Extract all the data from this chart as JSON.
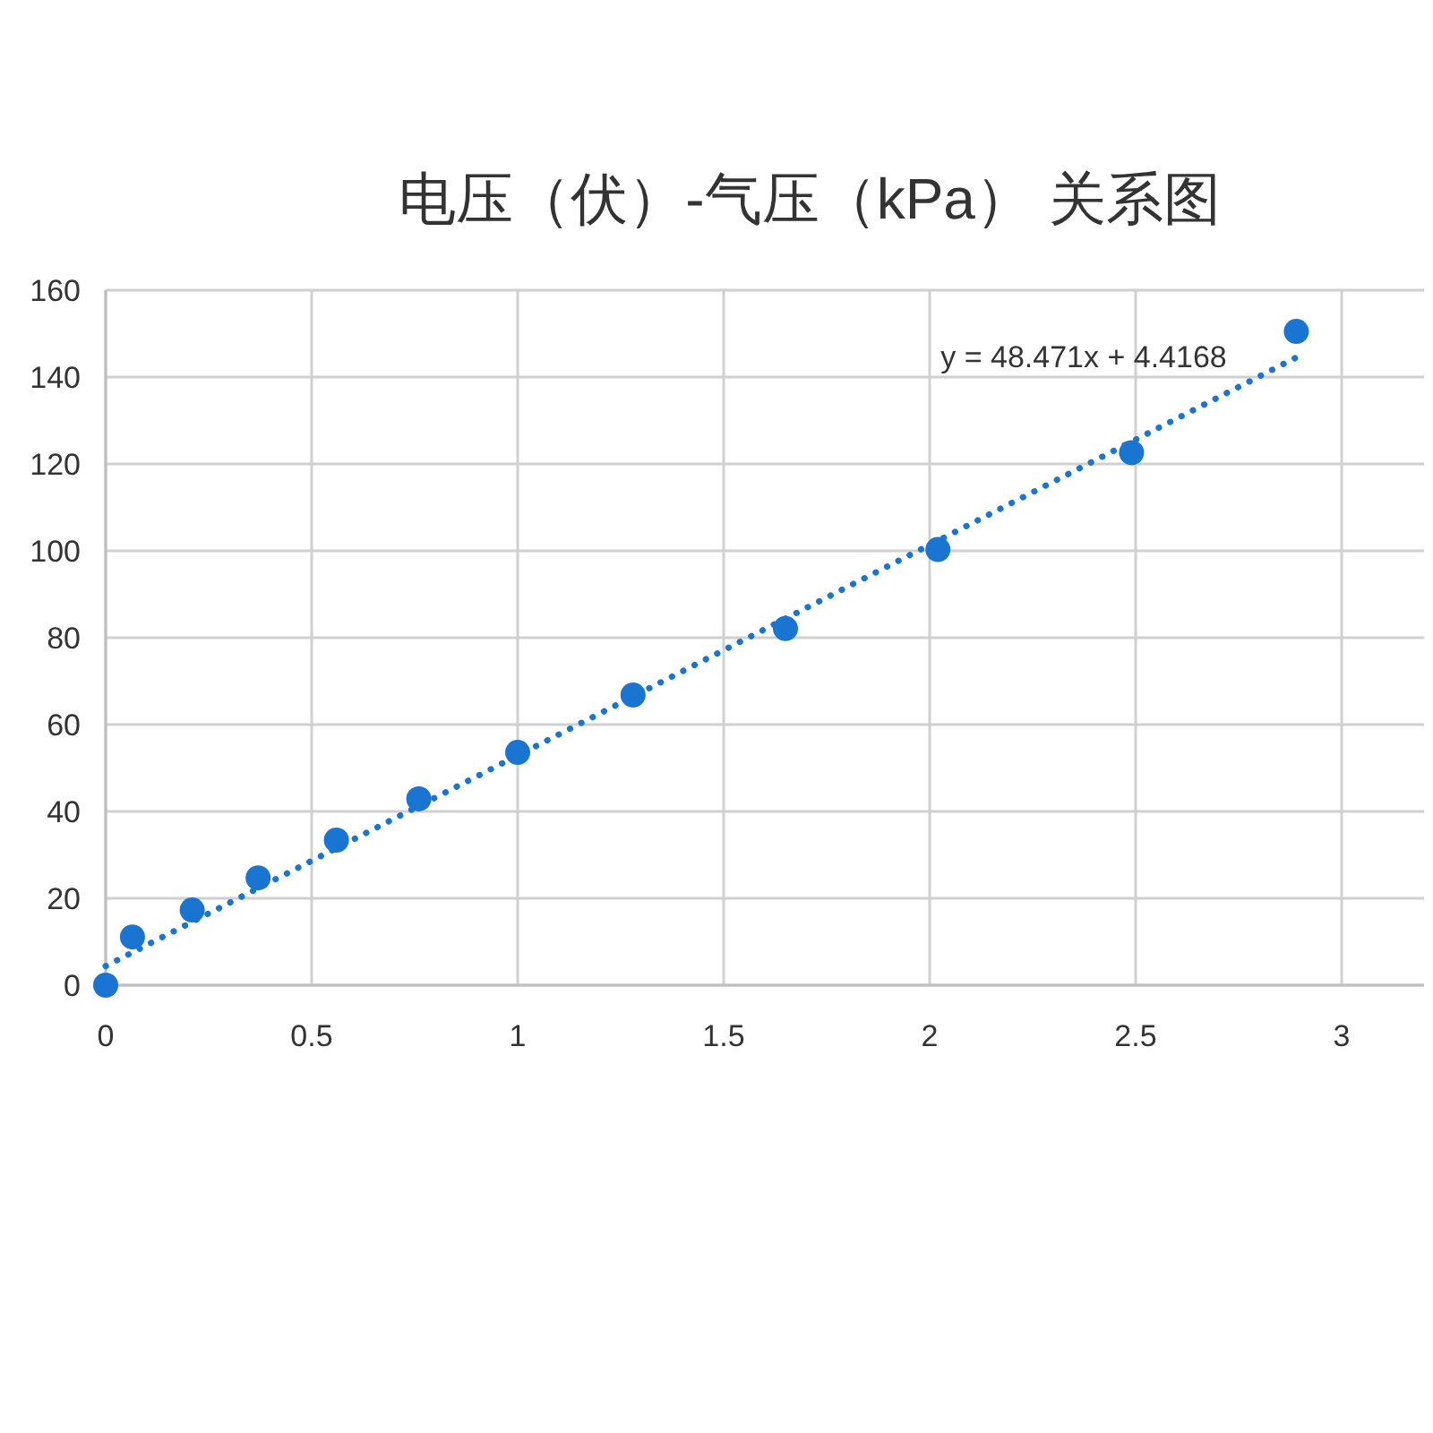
{
  "chart_data": {
    "type": "scatter",
    "title": "电压（伏）-气压（kPa） 关系图",
    "annotations": [
      "y = 48.471x + 4.4168"
    ],
    "xlim": [
      0,
      3.2
    ],
    "xticks": [
      0,
      0.5,
      1,
      1.5,
      2,
      2.5,
      3
    ],
    "ylim": [
      0,
      160
    ],
    "yticks": [
      0,
      20,
      40,
      60,
      80,
      100,
      120,
      140,
      160
    ],
    "grid": true,
    "series": [
      {
        "color": "#1a75d2",
        "marker": "circle",
        "x": [
          0,
          0.065,
          0.21,
          0.37,
          0.56,
          0.76,
          1.0,
          1.28,
          1.65,
          2.02,
          2.49,
          2.89
        ],
        "values": [
          0,
          11.1,
          17.3,
          24.7,
          33.4,
          42.9,
          53.6,
          66.8,
          82.1,
          100.3,
          122.6,
          150.5
        ]
      },
      {
        "type": "line",
        "color": "#1a75d2",
        "marker": "none",
        "line_style": "dotted",
        "x": [
          0,
          2.9
        ],
        "values": [
          4.4,
          145
        ]
      }
    ]
  }
}
